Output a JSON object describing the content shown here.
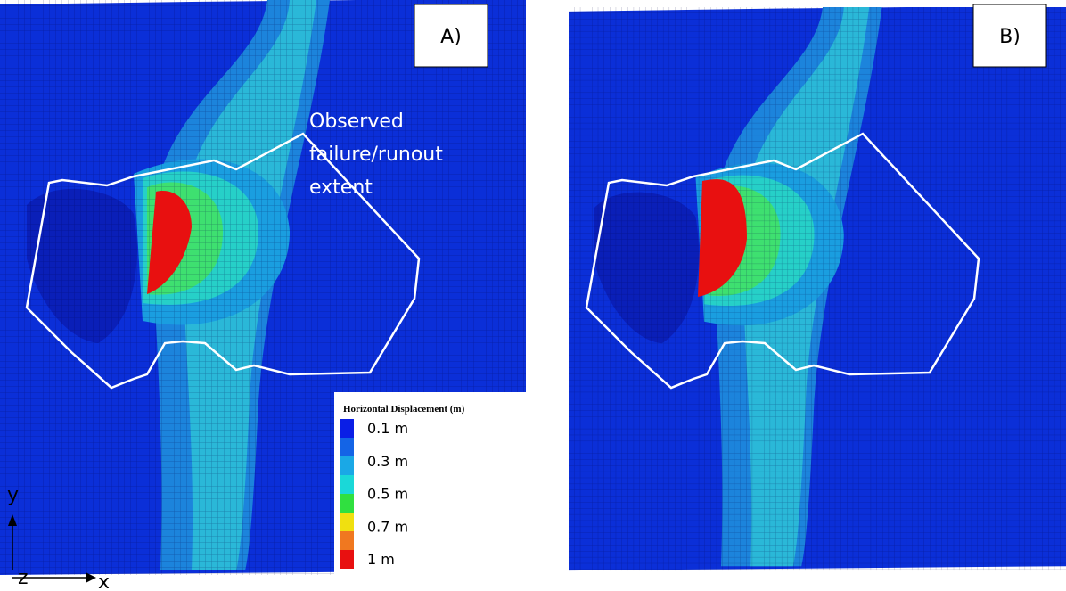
{
  "panels": [
    {
      "label": "A)"
    },
    {
      "label": "B)"
    }
  ],
  "annotation": {
    "lines": [
      "Observed",
      "failure/runout",
      "extent"
    ]
  },
  "legend": {
    "title": "Horizontal Displacement (m)",
    "labels": [
      "0.1 m",
      "0.3 m",
      "0.5 m",
      "0.7 m",
      "1 m"
    ],
    "colors": [
      "#0a1ee6",
      "#1464e6",
      "#1aa8e6",
      "#1ad8d8",
      "#30e040",
      "#f0e010",
      "#f07820",
      "#e81010"
    ]
  },
  "axes": {
    "y": "y",
    "z": "z",
    "x": "x"
  }
}
